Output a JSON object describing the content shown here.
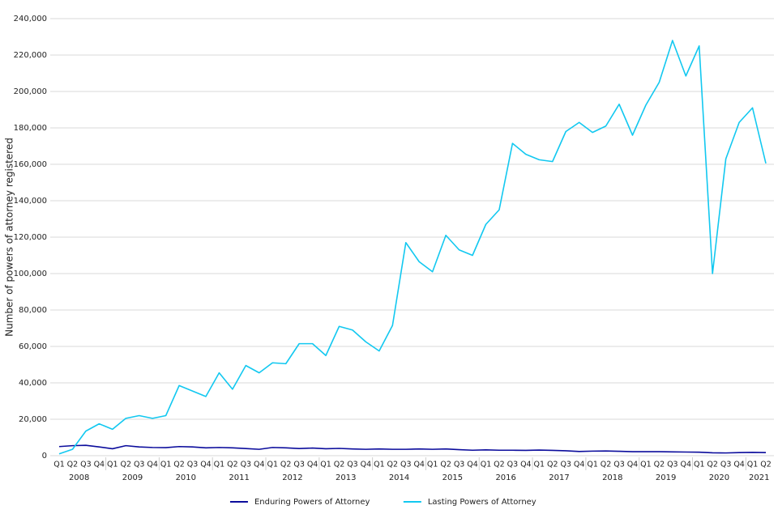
{
  "chart_data": {
    "type": "line",
    "y_label": "Number of powers of attorney registered",
    "categories": [
      "Q1",
      "Q2",
      "Q3",
      "Q4",
      "Q1",
      "Q2",
      "Q3",
      "Q4",
      "Q1",
      "Q2",
      "Q3",
      "Q4",
      "Q1",
      "Q2",
      "Q3",
      "Q4",
      "Q1",
      "Q2",
      "Q3",
      "Q4",
      "Q1",
      "Q2",
      "Q3",
      "Q4",
      "Q1",
      "Q2",
      "Q3",
      "Q4",
      "Q1",
      "Q2",
      "Q3",
      "Q4",
      "Q1",
      "Q2",
      "Q3",
      "Q4",
      "Q1",
      "Q2",
      "Q3",
      "Q4",
      "Q1",
      "Q2",
      "Q3",
      "Q4",
      "Q1",
      "Q2",
      "Q3",
      "Q4",
      "Q1",
      "Q2",
      "Q3",
      "Q4",
      "Q1",
      "Q2"
    ],
    "years": [
      "2008",
      "2009",
      "2010",
      "2011",
      "2012",
      "2013",
      "2014",
      "2015",
      "2016",
      "2017",
      "2018",
      "2019",
      "2020",
      "2021"
    ],
    "series": [
      {
        "name": "Enduring Powers of Attorney",
        "color": "#0b0c9c",
        "values": [
          5000,
          5500,
          5700,
          4800,
          3800,
          5500,
          4800,
          4500,
          4400,
          5000,
          4800,
          4300,
          4500,
          4300,
          3900,
          3500,
          4500,
          4300,
          3900,
          4200,
          3800,
          4000,
          3700,
          3500,
          3700,
          3500,
          3500,
          3700,
          3500,
          3700,
          3300,
          3000,
          3200,
          3000,
          3000,
          2900,
          3100,
          2900,
          2700,
          2300,
          2500,
          2600,
          2400,
          2200,
          2200,
          2200,
          2100,
          2000,
          1900,
          1600,
          1500,
          1700,
          1800,
          1700
        ]
      },
      {
        "name": "Lasting Powers of Attorney",
        "color": "#12c8f0",
        "values": [
          1000,
          3500,
          13500,
          17500,
          14500,
          20500,
          22000,
          20500,
          22000,
          38500,
          35500,
          32500,
          45500,
          36500,
          49500,
          45500,
          51000,
          50500,
          61500,
          61500,
          55000,
          71000,
          69000,
          62500,
          57500,
          71500,
          117000,
          106500,
          101000,
          121000,
          113000,
          110000,
          127000,
          135000,
          171500,
          165500,
          162500,
          161500,
          178000,
          183000,
          177500,
          181000,
          193000,
          176000,
          192500,
          205000,
          228000,
          208500,
          225000,
          100000,
          163000,
          183000,
          191000,
          160500
        ]
      }
    ],
    "ylim": [
      0,
      240000
    ],
    "yticks": [
      0,
      {
        "value": 20000,
        "label": "20,000"
      },
      {
        "value": 40000,
        "label": "40,000"
      },
      {
        "value": 60000,
        "label": "60,000"
      },
      {
        "value": 80000,
        "label": "80,000"
      },
      {
        "value": 100000,
        "label": "100,000"
      },
      {
        "value": 120000,
        "label": "120,000"
      },
      {
        "value": 140000,
        "label": "140,000"
      },
      {
        "value": 160000,
        "label": "160,000"
      },
      {
        "value": 180000,
        "label": "180,000"
      },
      {
        "value": 200000,
        "label": "200,000"
      },
      {
        "value": 220000,
        "label": "220,000"
      },
      {
        "value": 240000,
        "label": "240,000"
      }
    ],
    "grid": true,
    "legend": "bottom"
  }
}
